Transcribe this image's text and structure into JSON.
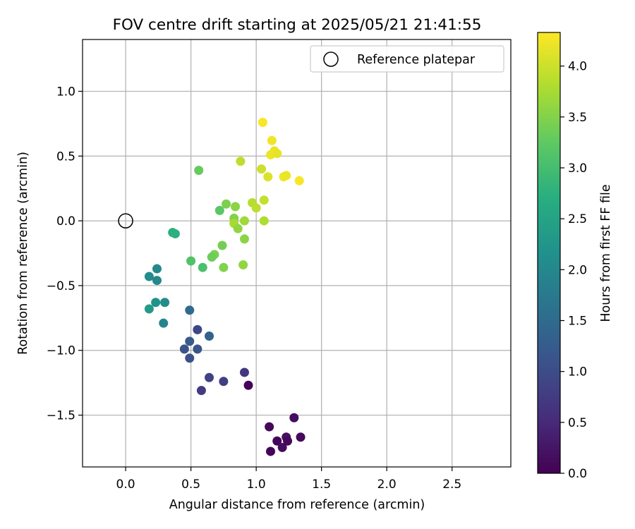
{
  "chart_data": {
    "type": "scatter",
    "title": "FOV centre drift starting at 2025/05/21 21:41:55",
    "xlabel": "Angular distance from reference (arcmin)",
    "ylabel": "Rotation from reference (arcmin)",
    "colorbar_label": "Hours from first FF file",
    "colormap": "viridis",
    "xlim": [
      -0.33,
      2.95
    ],
    "ylim": [
      -1.9,
      1.4
    ],
    "clim": [
      0.0,
      4.33
    ],
    "xticks": [
      "0.0",
      "0.5",
      "1.0",
      "1.5",
      "2.0",
      "2.5"
    ],
    "yticks": [
      "1.0",
      "0.5",
      "0.0",
      "−0.5",
      "−1.0",
      "−1.5"
    ],
    "colorbar_ticks": [
      "4.0",
      "3.5",
      "3.0",
      "2.5",
      "2.0",
      "1.5",
      "1.0",
      "0.5",
      "0.0"
    ],
    "grid": true,
    "legend": {
      "position": "upper-right",
      "label": "Reference platepar"
    },
    "reference_point": {
      "x": 0.0,
      "y": 0.0,
      "marker": "hollow-circle"
    },
    "points": [
      {
        "x": 1.05,
        "y": 0.76,
        "c": 4.3
      },
      {
        "x": 1.12,
        "y": 0.62,
        "c": 4.25
      },
      {
        "x": 1.14,
        "y": 0.54,
        "c": 4.2
      },
      {
        "x": 1.11,
        "y": 0.51,
        "c": 4.22
      },
      {
        "x": 1.16,
        "y": 0.52,
        "c": 4.18
      },
      {
        "x": 1.09,
        "y": 0.34,
        "c": 4.1
      },
      {
        "x": 1.21,
        "y": 0.34,
        "c": 4.24
      },
      {
        "x": 1.23,
        "y": 0.35,
        "c": 4.21
      },
      {
        "x": 1.33,
        "y": 0.31,
        "c": 4.28
      },
      {
        "x": 1.04,
        "y": 0.4,
        "c": 4.0
      },
      {
        "x": 0.88,
        "y": 0.46,
        "c": 3.9
      },
      {
        "x": 0.56,
        "y": 0.39,
        "c": 3.3
      },
      {
        "x": 1.06,
        "y": 0.16,
        "c": 3.95
      },
      {
        "x": 0.97,
        "y": 0.14,
        "c": 3.85
      },
      {
        "x": 1.0,
        "y": 0.1,
        "c": 3.9
      },
      {
        "x": 0.77,
        "y": 0.13,
        "c": 3.45
      },
      {
        "x": 0.84,
        "y": 0.11,
        "c": 3.55
      },
      {
        "x": 0.72,
        "y": 0.08,
        "c": 3.2
      },
      {
        "x": 0.83,
        "y": 0.02,
        "c": 3.5
      },
      {
        "x": 0.83,
        "y": -0.02,
        "c": 3.75
      },
      {
        "x": 0.91,
        "y": 0.0,
        "c": 3.7
      },
      {
        "x": 1.06,
        "y": 0.0,
        "c": 3.8
      },
      {
        "x": 0.86,
        "y": -0.06,
        "c": 3.6
      },
      {
        "x": 0.91,
        "y": -0.14,
        "c": 3.55
      },
      {
        "x": 0.74,
        "y": -0.19,
        "c": 3.4
      },
      {
        "x": 0.68,
        "y": -0.26,
        "c": 3.45
      },
      {
        "x": 0.66,
        "y": -0.28,
        "c": 3.35
      },
      {
        "x": 0.5,
        "y": -0.31,
        "c": 3.1
      },
      {
        "x": 0.59,
        "y": -0.36,
        "c": 3.05
      },
      {
        "x": 0.75,
        "y": -0.36,
        "c": 3.5
      },
      {
        "x": 0.9,
        "y": -0.34,
        "c": 3.6
      },
      {
        "x": 0.36,
        "y": -0.09,
        "c": 2.7
      },
      {
        "x": 0.38,
        "y": -0.1,
        "c": 2.75
      },
      {
        "x": 0.18,
        "y": -0.43,
        "c": 2.1
      },
      {
        "x": 0.24,
        "y": -0.37,
        "c": 2.05
      },
      {
        "x": 0.24,
        "y": -0.46,
        "c": 2.0
      },
      {
        "x": 0.23,
        "y": -0.63,
        "c": 2.2
      },
      {
        "x": 0.18,
        "y": -0.68,
        "c": 2.35
      },
      {
        "x": 0.3,
        "y": -0.63,
        "c": 2.1
      },
      {
        "x": 0.29,
        "y": -0.79,
        "c": 1.95
      },
      {
        "x": 0.49,
        "y": -0.69,
        "c": 1.5
      },
      {
        "x": 0.55,
        "y": -0.84,
        "c": 0.9
      },
      {
        "x": 0.64,
        "y": -0.89,
        "c": 1.35
      },
      {
        "x": 0.49,
        "y": -0.93,
        "c": 1.2
      },
      {
        "x": 0.45,
        "y": -0.99,
        "c": 1.1
      },
      {
        "x": 0.55,
        "y": -0.99,
        "c": 1.15
      },
      {
        "x": 0.49,
        "y": -1.06,
        "c": 1.05
      },
      {
        "x": 0.64,
        "y": -1.21,
        "c": 0.85
      },
      {
        "x": 0.75,
        "y": -1.24,
        "c": 0.8
      },
      {
        "x": 0.58,
        "y": -1.31,
        "c": 0.75
      },
      {
        "x": 0.91,
        "y": -1.17,
        "c": 0.7
      },
      {
        "x": 0.94,
        "y": -1.27,
        "c": 0.05
      },
      {
        "x": 1.1,
        "y": -1.59,
        "c": 0.1
      },
      {
        "x": 1.29,
        "y": -1.52,
        "c": 0.15
      },
      {
        "x": 1.34,
        "y": -1.67,
        "c": 0.1
      },
      {
        "x": 1.23,
        "y": -1.67,
        "c": 0.2
      },
      {
        "x": 1.16,
        "y": -1.7,
        "c": 0.05
      },
      {
        "x": 1.24,
        "y": -1.7,
        "c": 0.1
      },
      {
        "x": 1.2,
        "y": -1.75,
        "c": 0.15
      },
      {
        "x": 1.11,
        "y": -1.78,
        "c": 0.05
      }
    ]
  }
}
